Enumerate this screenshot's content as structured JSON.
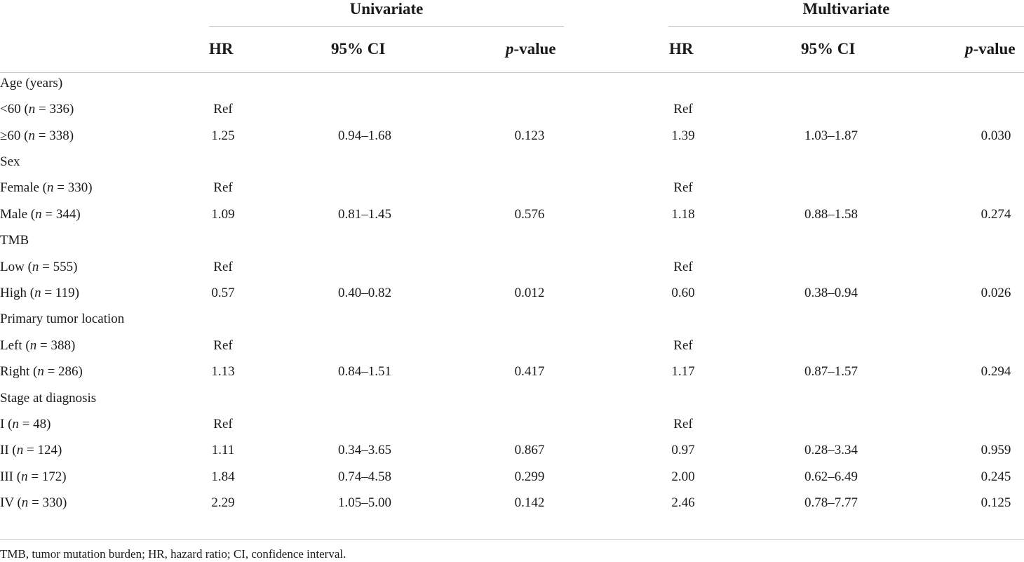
{
  "header": {
    "groups": [
      {
        "label": "Univariate"
      },
      {
        "label": "Multivariate"
      }
    ],
    "hr": "HR",
    "ci": "95% CI",
    "p_italic": "p",
    "p_rest": "-value"
  },
  "rows": [
    {
      "label": "Age (years)",
      "uhr": "",
      "uci": "",
      "up": "",
      "mhr": "",
      "mci": "",
      "mp": ""
    },
    {
      "label": "<60 (n = 336)",
      "uhr": "Ref",
      "uci": "",
      "up": "",
      "mhr": "Ref",
      "mci": "",
      "mp": ""
    },
    {
      "label": "≥60 (n = 338)",
      "uhr": "1.25",
      "uci": "0.94–1.68",
      "up": "0.123",
      "mhr": "1.39",
      "mci": "1.03–1.87",
      "mp": "0.030"
    },
    {
      "label": "Sex",
      "uhr": "",
      "uci": "",
      "up": "",
      "mhr": "",
      "mci": "",
      "mp": ""
    },
    {
      "label": "Female (n = 330)",
      "uhr": "Ref",
      "uci": "",
      "up": "",
      "mhr": "Ref",
      "mci": "",
      "mp": ""
    },
    {
      "label": "Male (n = 344)",
      "uhr": "1.09",
      "uci": "0.81–1.45",
      "up": "0.576",
      "mhr": "1.18",
      "mci": "0.88–1.58",
      "mp": "0.274"
    },
    {
      "label": "TMB",
      "uhr": "",
      "uci": "",
      "up": "",
      "mhr": "",
      "mci": "",
      "mp": ""
    },
    {
      "label": "Low (n = 555)",
      "uhr": "Ref",
      "uci": "",
      "up": "",
      "mhr": "Ref",
      "mci": "",
      "mp": ""
    },
    {
      "label": "High (n = 119)",
      "uhr": "0.57",
      "uci": "0.40–0.82",
      "up": "0.012",
      "mhr": "0.60",
      "mci": "0.38–0.94",
      "mp": "0.026"
    },
    {
      "label": "Primary tumor location",
      "uhr": "",
      "uci": "",
      "up": "",
      "mhr": "",
      "mci": "",
      "mp": ""
    },
    {
      "label": "Left (n = 388)",
      "uhr": "Ref",
      "uci": "",
      "up": "",
      "mhr": "Ref",
      "mci": "",
      "mp": ""
    },
    {
      "label": "Right (n = 286)",
      "uhr": "1.13",
      "uci": "0.84–1.51",
      "up": "0.417",
      "mhr": "1.17",
      "mci": "0.87–1.57",
      "mp": "0.294"
    },
    {
      "label": "Stage at diagnosis",
      "uhr": "",
      "uci": "",
      "up": "",
      "mhr": "",
      "mci": "",
      "mp": ""
    },
    {
      "label": "I (n = 48)",
      "uhr": "Ref",
      "uci": "",
      "up": "",
      "mhr": "Ref",
      "mci": "",
      "mp": ""
    },
    {
      "label": "II (n = 124)",
      "uhr": "1.11",
      "uci": "0.34–3.65",
      "up": "0.867",
      "mhr": "0.97",
      "mci": "0.28–3.34",
      "mp": "0.959"
    },
    {
      "label": "III (n = 172)",
      "uhr": "1.84",
      "uci": "0.74–4.58",
      "up": "0.299",
      "mhr": "2.00",
      "mci": "0.62–6.49",
      "mp": "0.245"
    },
    {
      "label": "IV (n = 330)",
      "uhr": "2.29",
      "uci": "1.05–5.00",
      "up": "0.142",
      "mhr": "2.46",
      "mci": "0.78–7.77",
      "mp": "0.125"
    }
  ],
  "footnote": "TMB, tumor mutation burden; HR, hazard ratio; CI, confidence interval."
}
